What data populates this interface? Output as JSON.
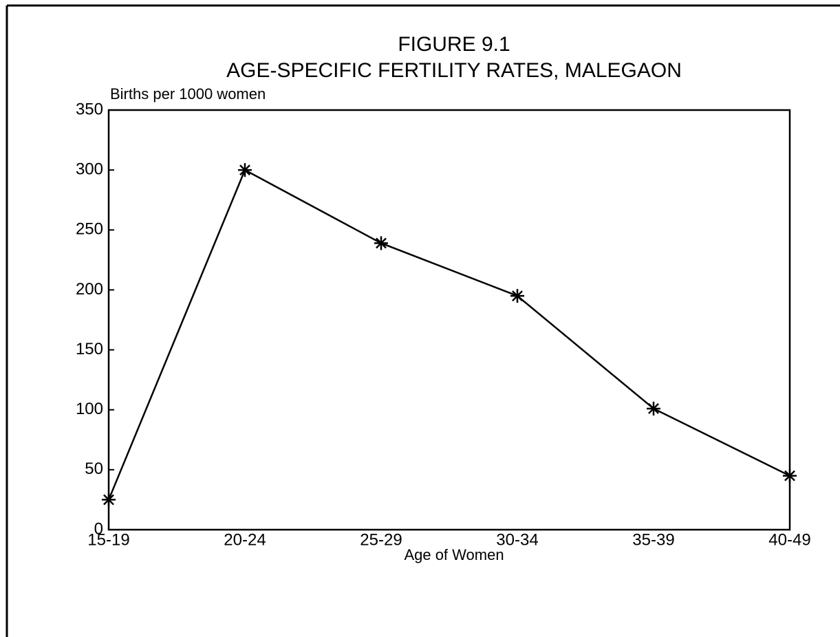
{
  "chart_data": {
    "type": "line",
    "title": "FIGURE 9.1",
    "subtitle": "AGE-SPECIFIC FERTILITY RATES, MALEGAON",
    "y_label": "Births per 1000 women",
    "x_label": "Age of Women",
    "categories": [
      "15-19",
      "20-24",
      "25-29",
      "30-34",
      "35-39",
      "40-49"
    ],
    "values": [
      25,
      300,
      239,
      195,
      101,
      45
    ],
    "color": "#000000",
    "marker": "star",
    "ylim": [
      0,
      350
    ],
    "yticks": [
      0,
      50,
      100,
      150,
      200,
      250,
      300,
      350
    ],
    "grid": false
  }
}
